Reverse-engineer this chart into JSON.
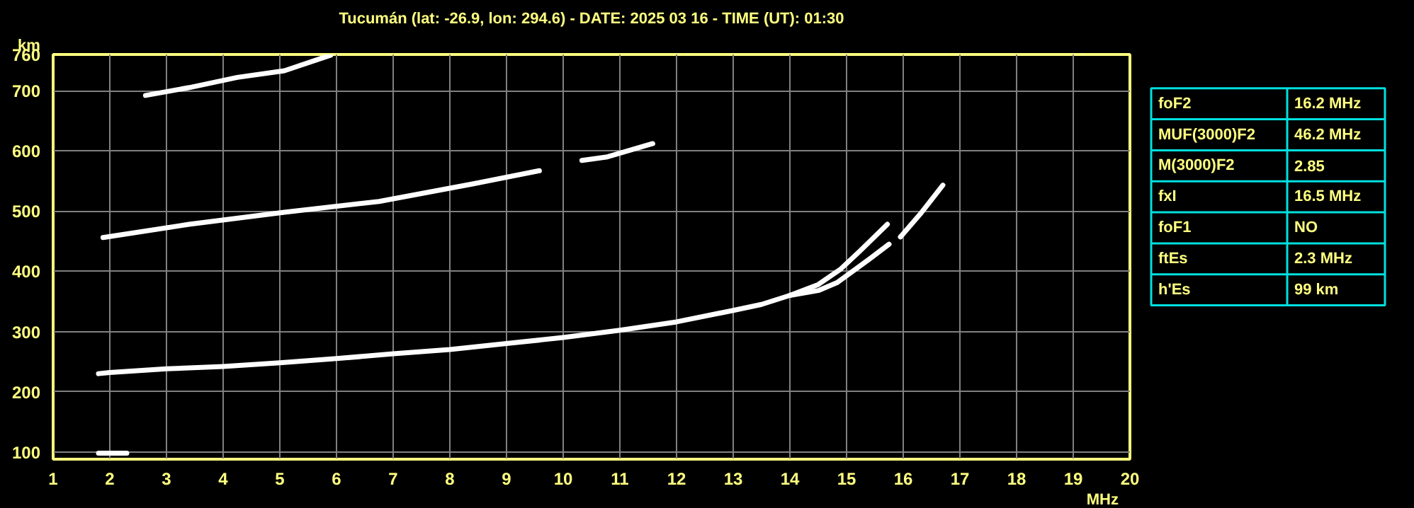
{
  "chart_data": [
    {
      "type": "line",
      "title": "Tucumán (lat: -26.9, lon: 294.6) - DATE: 2025 03 16 - TIME (UT): 01:30",
      "xlabel": "MHz",
      "ylabel": "km",
      "xlim": [
        1,
        20
      ],
      "ylim": [
        88,
        760
      ],
      "xticks": [
        1,
        2,
        3,
        4,
        5,
        6,
        7,
        8,
        9,
        10,
        11,
        12,
        13,
        14,
        15,
        16,
        17,
        18,
        19,
        20
      ],
      "yticks": [
        100,
        200,
        300,
        400,
        500,
        600,
        700,
        760
      ],
      "grid": true,
      "marker": "none",
      "line_style": "solid",
      "series": [
        {
          "color": "#ffffff",
          "x": [
            1.8,
            2,
            3,
            4,
            5,
            6,
            7,
            8,
            9,
            10,
            11,
            12,
            13,
            13.5,
            14,
            14.5,
            14.9,
            15.24,
            15.72
          ],
          "values": [
            230,
            232,
            238,
            242,
            248,
            255,
            263,
            270,
            280,
            290,
            302,
            316,
            335,
            345,
            360,
            378,
            404,
            434,
            478
          ]
        },
        {
          "color": "#ffffff",
          "x": [
            14,
            14.5,
            14.83,
            15.4,
            15.75
          ],
          "values": [
            360,
            368,
            381,
            420,
            445
          ]
        },
        {
          "color": "#ffffff",
          "x": [
            15.95,
            16.3,
            16.7
          ],
          "values": [
            457,
            495,
            543
          ]
        },
        {
          "color": "#ffffff",
          "x": [
            1.88,
            3.4,
            5.08,
            6.75,
            8.4,
            9.58
          ],
          "values": [
            456,
            478,
            498,
            516,
            545,
            567
          ]
        },
        {
          "color": "#ffffff",
          "x": [
            10.33,
            10.78,
            11.58
          ],
          "values": [
            584,
            590,
            612
          ]
        },
        {
          "color": "#ffffff",
          "x": [
            2.63,
            3.4,
            4.25,
            5.08,
            5.9
          ],
          "values": [
            692,
            705,
            722,
            733,
            759
          ]
        },
        {
          "color": "#ffffff",
          "x": [
            1.8,
            2.3
          ],
          "values": [
            98,
            98
          ]
        }
      ]
    },
    {
      "type": "other",
      "categories": [
        "foF2",
        "MUF(3000)F2",
        "M(3000)F2",
        "fxI",
        "foF1",
        "ftEs",
        "h'Es"
      ],
      "value_labels": [
        "16.2 MHz",
        "46.2 MHz",
        "2.85",
        "16.5 MHz",
        "NO",
        "2.3 MHz",
        "99 km"
      ]
    }
  ]
}
